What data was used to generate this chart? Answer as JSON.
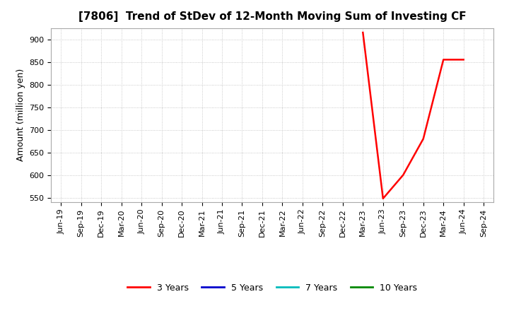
{
  "title": "[7806]  Trend of StDev of 12-Month Moving Sum of Investing CF",
  "ylabel": "Amount (million yen)",
  "ylim": [
    540,
    925
  ],
  "yticks": [
    550,
    600,
    650,
    700,
    750,
    800,
    850,
    900
  ],
  "background_color": "#ffffff",
  "grid_color": "#bbbbbb",
  "line_3y_color": "#ff0000",
  "line_5y_color": "#0000cc",
  "line_7y_color": "#00bbbb",
  "line_10y_color": "#008800",
  "x_labels": [
    "Jun-19",
    "Sep-19",
    "Dec-19",
    "Mar-20",
    "Jun-20",
    "Sep-20",
    "Dec-20",
    "Mar-21",
    "Jun-21",
    "Sep-21",
    "Dec-21",
    "Mar-22",
    "Jun-22",
    "Sep-22",
    "Dec-22",
    "Mar-23",
    "Jun-23",
    "Sep-23",
    "Dec-23",
    "Mar-24",
    "Jun-24",
    "Sep-24"
  ],
  "series_3y_x": [
    15,
    16,
    17,
    18,
    19,
    20
  ],
  "series_3y_y": [
    915,
    548,
    600,
    680,
    855,
    855
  ],
  "legend_labels": [
    "3 Years",
    "5 Years",
    "7 Years",
    "10 Years"
  ],
  "title_fontsize": 11,
  "axis_fontsize": 9,
  "tick_fontsize": 8
}
